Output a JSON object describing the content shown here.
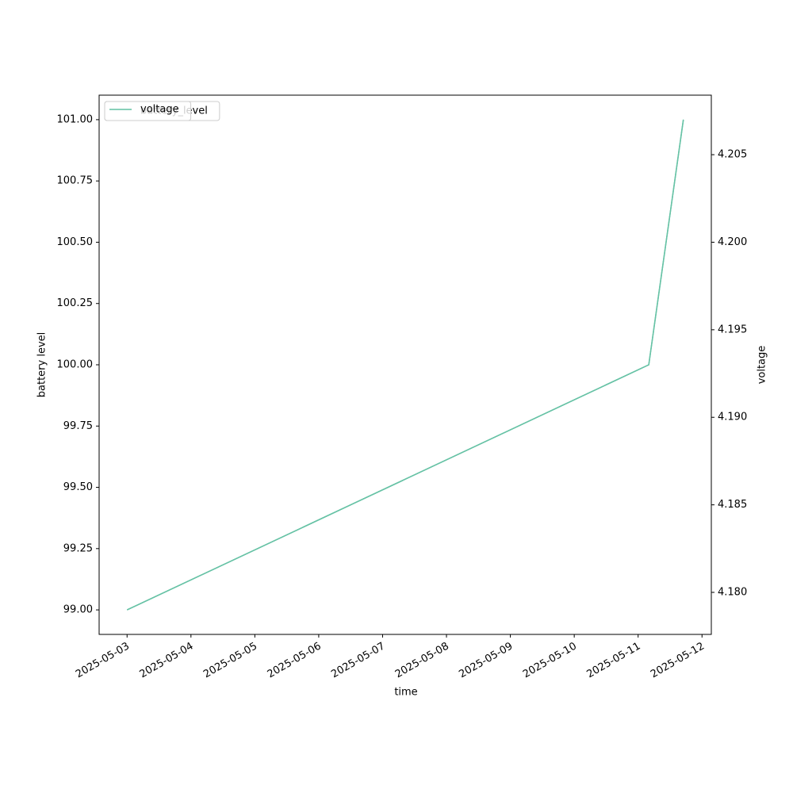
{
  "chart_data": {
    "type": "line",
    "x_label": "time",
    "y_label": "battery level",
    "y2_label": "voltage",
    "x": [
      "2025-05-03T00:00",
      "2025-05-11T04:00",
      "2025-05-11T17:00"
    ],
    "series": [
      {
        "name": "battery_level",
        "color": "#66c2a5",
        "values": [
          99,
          100,
          101
        ]
      },
      {
        "name": "voltage",
        "color": "#66c2a5",
        "values": [
          4.179,
          4.193,
          4.207
        ],
        "axis": "y2"
      }
    ],
    "xlim": [
      "2025-05-02T13:30",
      "2025-05-12T03:30"
    ],
    "xticks": [
      "2025-05-03",
      "2025-05-04",
      "2025-05-05",
      "2025-05-06",
      "2025-05-07",
      "2025-05-08",
      "2025-05-09",
      "2025-05-10",
      "2025-05-11",
      "2025-05-12"
    ],
    "ylim": [
      98.9,
      101.1
    ],
    "yticks": [
      {
        "value": 99,
        "label": "99.00"
      },
      {
        "value": 99.25,
        "label": "99.25"
      },
      {
        "value": 99.5,
        "label": "99.50"
      },
      {
        "value": 99.75,
        "label": "99.75"
      },
      {
        "value": 100,
        "label": "100.00"
      },
      {
        "value": 100.25,
        "label": "100.25"
      },
      {
        "value": 100.5,
        "label": "100.50"
      },
      {
        "value": 100.75,
        "label": "100.75"
      },
      {
        "value": 101,
        "label": "101.00"
      }
    ],
    "y2lim": [
      4.1776,
      4.2084
    ],
    "y2ticks": [
      {
        "value": 4.18,
        "label": "4.180"
      },
      {
        "value": 4.185,
        "label": "4.185"
      },
      {
        "value": 4.19,
        "label": "4.190"
      },
      {
        "value": 4.195,
        "label": "4.195"
      },
      {
        "value": 4.2,
        "label": "4.200"
      },
      {
        "value": 4.205,
        "label": "4.205"
      }
    ],
    "legend": "upper left",
    "grid": false
  }
}
